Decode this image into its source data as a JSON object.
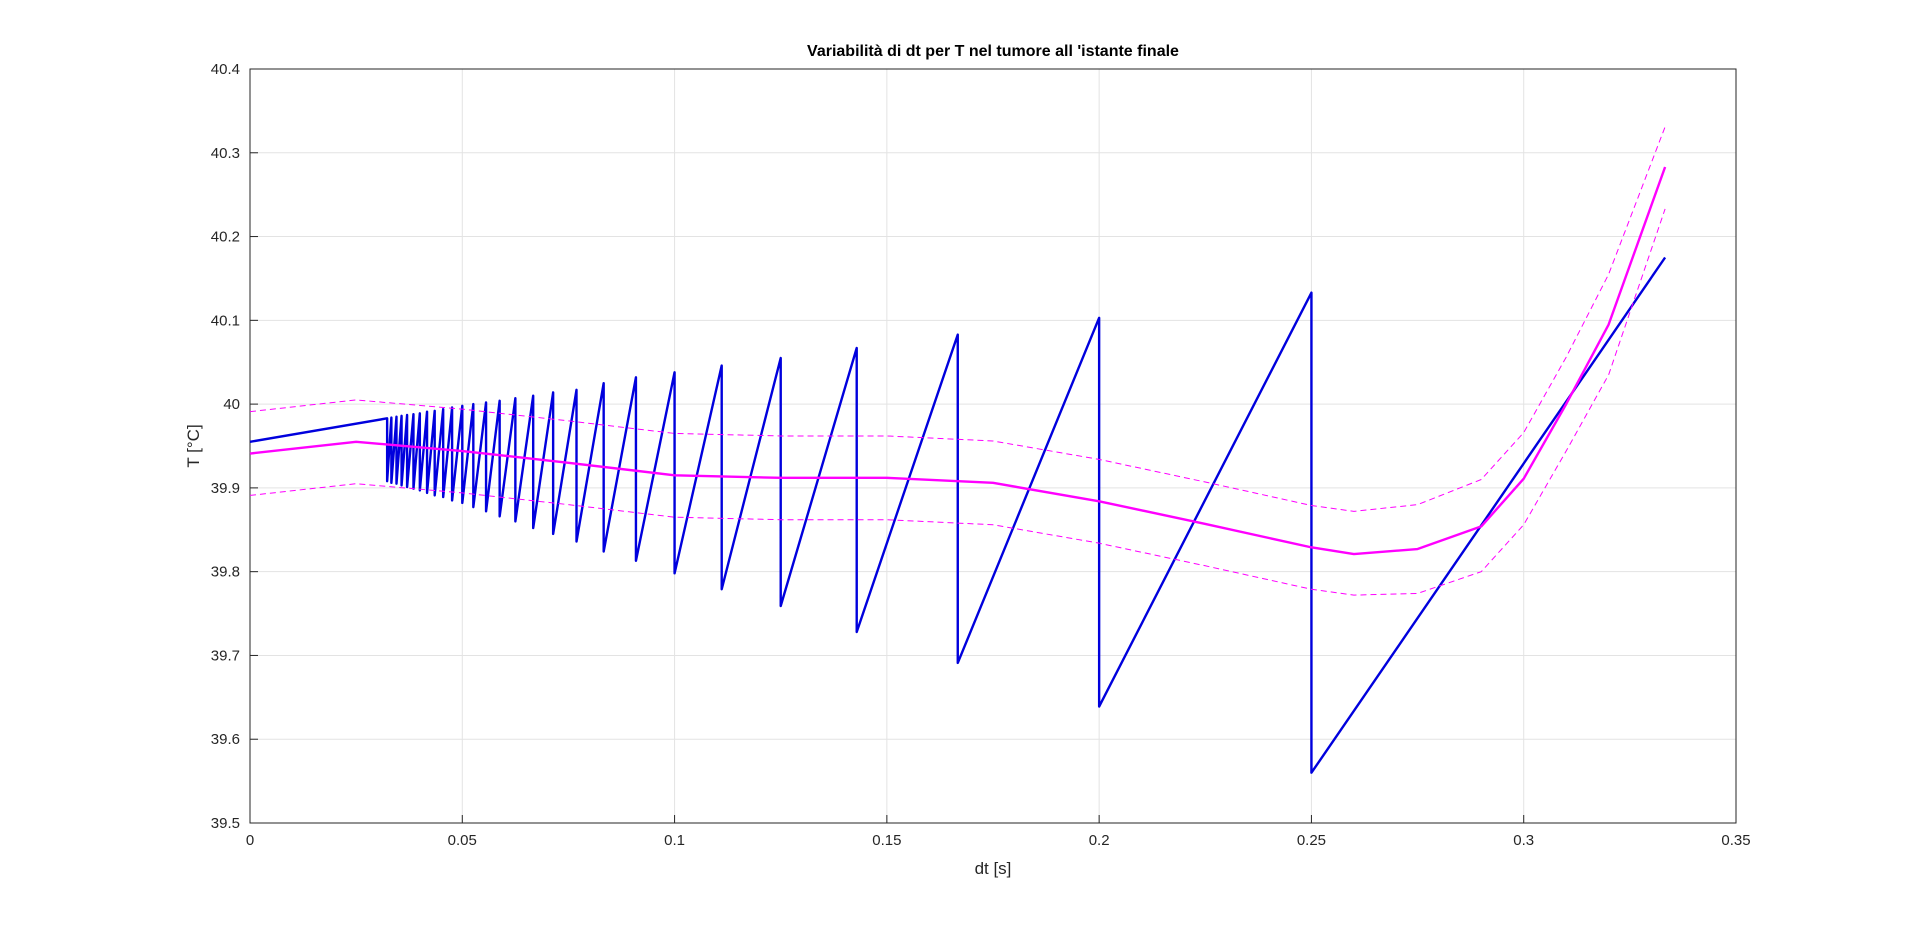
{
  "chart_data": {
    "type": "line",
    "title": "Variabilità di dt per T nel tumore all 'istante finale",
    "xlabel": "dt [s]",
    "ylabel": "T [°C]",
    "xlim": [
      0,
      0.35
    ],
    "xticks": [
      0,
      0.05,
      0.1,
      0.15,
      0.2,
      0.25,
      0.3,
      0.35
    ],
    "ylim": [
      39.5,
      40.4
    ],
    "yticks": [
      39.5,
      39.6,
      39.7,
      39.8,
      39.9,
      40,
      40.1,
      40.2,
      40.3,
      40.4
    ],
    "grid": true,
    "series": [
      {
        "color": "#0000dd",
        "style": "solid",
        "width": 2.4,
        "x": [
          0,
          0.0323,
          0.0323,
          0.0333,
          0.0333,
          0.0345,
          0.0345,
          0.0357,
          0.0357,
          0.037,
          0.037,
          0.0385,
          0.0385,
          0.04,
          0.04,
          0.0417,
          0.0417,
          0.0435,
          0.0435,
          0.0455,
          0.0455,
          0.0476,
          0.0476,
          0.05,
          0.05,
          0.0526,
          0.0526,
          0.0556,
          0.0556,
          0.0588,
          0.0588,
          0.0625,
          0.0625,
          0.0667,
          0.0667,
          0.0714,
          0.0714,
          0.0769,
          0.0769,
          0.0833,
          0.0833,
          0.0909,
          0.0909,
          0.1,
          0.1,
          0.1111,
          0.1111,
          0.125,
          0.125,
          0.1429,
          0.1429,
          0.1667,
          0.1667,
          0.2,
          0.2,
          0.25,
          0.25,
          0.3333
        ],
        "values": [
          39.955,
          39.983,
          39.908,
          39.984,
          39.906,
          39.985,
          39.905,
          39.986,
          39.903,
          39.987,
          39.901,
          39.988,
          39.899,
          39.989,
          39.897,
          39.991,
          39.894,
          39.992,
          39.891,
          39.994,
          39.889,
          39.996,
          39.885,
          39.998,
          39.882,
          40.0,
          39.877,
          40.002,
          39.872,
          40.004,
          39.866,
          40.007,
          39.86,
          40.01,
          39.852,
          40.014,
          39.845,
          40.017,
          39.836,
          40.025,
          39.824,
          40.032,
          39.813,
          40.038,
          39.798,
          40.046,
          39.779,
          40.055,
          39.759,
          40.067,
          39.728,
          40.083,
          39.691,
          40.103,
          39.639,
          40.133,
          39.56,
          40.175
        ]
      },
      {
        "color": "#ff00ff",
        "style": "solid",
        "width": 2.4,
        "x": [
          0,
          0.025,
          0.05,
          0.075,
          0.1,
          0.125,
          0.15,
          0.175,
          0.2,
          0.225,
          0.25,
          0.26,
          0.275,
          0.29,
          0.3,
          0.31,
          0.32,
          0.3333
        ],
        "values": [
          39.941,
          39.955,
          39.944,
          39.93,
          39.915,
          39.912,
          39.912,
          39.906,
          39.884,
          39.857,
          39.829,
          39.821,
          39.827,
          39.854,
          39.911,
          40.0,
          40.095,
          40.283
        ]
      },
      {
        "color": "#ff00ff",
        "style": "dashed",
        "width": 1,
        "x": [
          0,
          0.025,
          0.05,
          0.075,
          0.1,
          0.125,
          0.15,
          0.175,
          0.2,
          0.225,
          0.25,
          0.26,
          0.275,
          0.29,
          0.3,
          0.31,
          0.32,
          0.3333
        ],
        "values": [
          39.991,
          40.005,
          39.994,
          39.98,
          39.965,
          39.962,
          39.962,
          39.956,
          39.934,
          39.907,
          39.879,
          39.872,
          39.88,
          39.91,
          39.966,
          40.056,
          40.155,
          40.331
        ]
      },
      {
        "color": "#ff00ff",
        "style": "dashed",
        "width": 1,
        "x": [
          0,
          0.025,
          0.05,
          0.075,
          0.1,
          0.125,
          0.15,
          0.175,
          0.2,
          0.225,
          0.25,
          0.26,
          0.275,
          0.29,
          0.3,
          0.31,
          0.32,
          0.3333
        ],
        "values": [
          39.891,
          39.905,
          39.894,
          39.88,
          39.865,
          39.862,
          39.862,
          39.856,
          39.834,
          39.807,
          39.779,
          39.772,
          39.774,
          39.8,
          39.856,
          39.944,
          40.035,
          40.233
        ]
      }
    ]
  }
}
